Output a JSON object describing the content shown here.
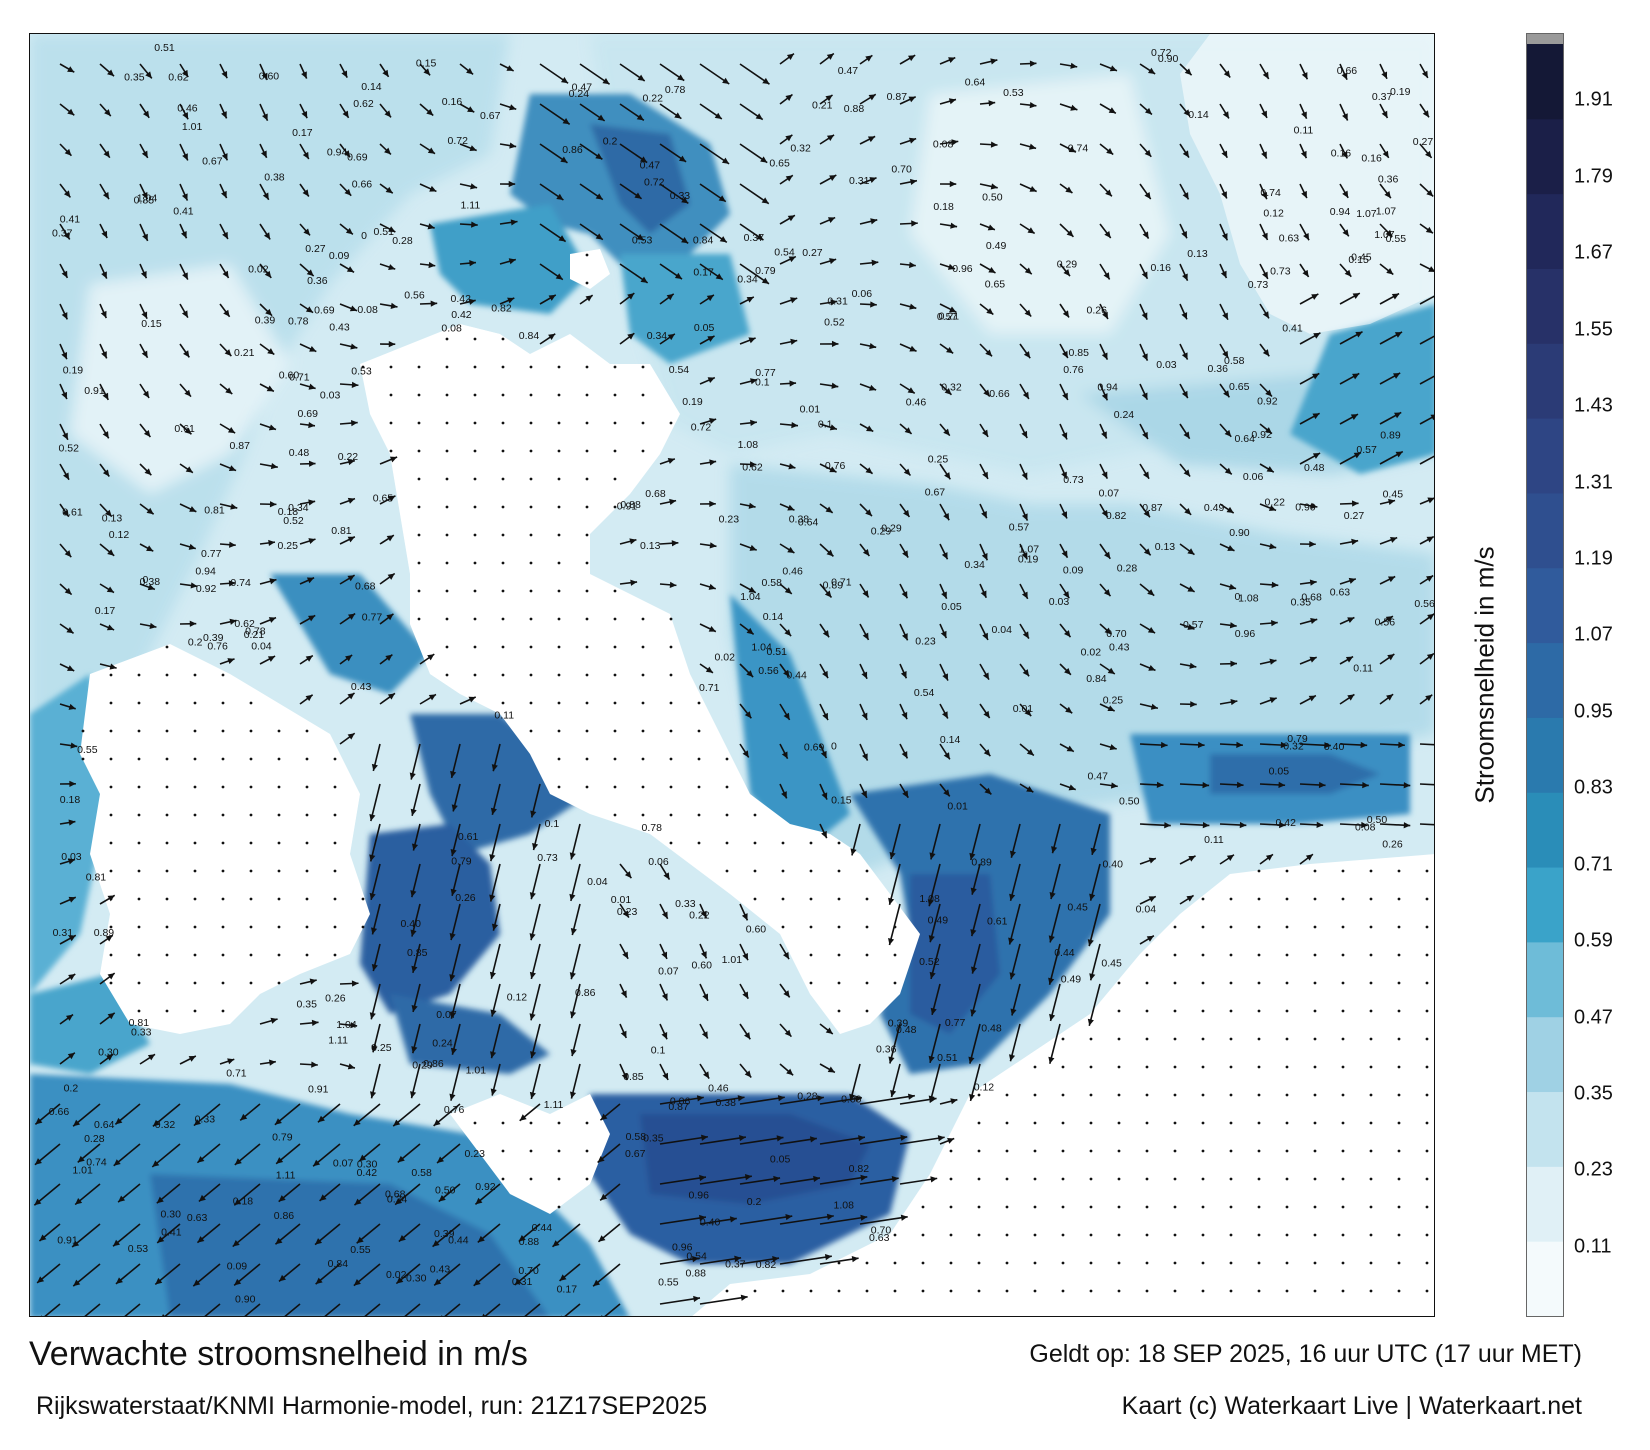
{
  "title": "Verwachte stroomsnelheid in m/s",
  "subtitle": "Rijkswaterstaat/KNMI Harmonie-model, run: 21Z17SEP2025",
  "valid_time": "Geldt op: 18 SEP 2025, 16 uur UTC (17 uur MET)",
  "credit": "Kaart (c) Waterkaart Live | Waterkaart.net",
  "colorbar": {
    "label": "Stroomsnelheid in m/s",
    "ticks": [
      "1.91",
      "1.79",
      "1.67",
      "1.55",
      "1.43",
      "1.31",
      "1.19",
      "1.07",
      "0.95",
      "0.83",
      "0.71",
      "0.59",
      "0.47",
      "0.35",
      "0.23",
      "0.11"
    ],
    "tick_values": [
      1.91,
      1.79,
      1.67,
      1.55,
      1.43,
      1.31,
      1.19,
      1.07,
      0.95,
      0.83,
      0.71,
      0.59,
      0.47,
      0.35,
      0.23,
      0.11
    ],
    "min": 0.0,
    "max": 2.0,
    "colors": [
      "#f4fafc",
      "#e0f0f6",
      "#c3e3ee",
      "#9fd1e4",
      "#6ebcd8",
      "#3aa3c9",
      "#2a8db8",
      "#2a7aae",
      "#2d6aa6",
      "#305b9c",
      "#2f4f8f",
      "#2e4584",
      "#2b3b76",
      "#273168",
      "#21285a",
      "#1b1f48",
      "#141836"
    ]
  },
  "labels": [
    {
      "t": "0.1"
    },
    {
      "t": "0.14"
    },
    {
      "t": "0.08"
    },
    {
      "t": "0.16"
    },
    {
      "t": "0.12"
    },
    {
      "t": "0.2"
    },
    {
      "t": "0.13"
    },
    {
      "t": "0.19"
    },
    {
      "t": "0.11"
    },
    {
      "t": "0.17"
    },
    {
      "t": "0.15"
    },
    {
      "t": "0.09"
    },
    {
      "t": "0.06"
    },
    {
      "t": "0.07"
    },
    {
      "t": "0.05"
    },
    {
      "t": "0.18"
    },
    {
      "t": "0.21"
    },
    {
      "t": "0.25"
    },
    {
      "t": "0.29"
    },
    {
      "t": "0.36"
    },
    {
      "t": "0.43"
    },
    {
      "t": "0.56"
    },
    {
      "t": "0.72"
    },
    {
      "t": "0.79"
    },
    {
      "t": "0.89"
    },
    {
      "t": "0.47"
    },
    {
      "t": "0.33"
    },
    {
      "t": "0.27"
    },
    {
      "t": "0.22"
    },
    {
      "t": "0.02"
    },
    {
      "t": "0.01"
    },
    {
      "t": "0.04"
    },
    {
      "t": "0.03"
    },
    {
      "t": "0"
    },
    {
      "t": "0.24"
    },
    {
      "t": "0.31"
    },
    {
      "t": "0.37"
    },
    {
      "t": "0.52"
    },
    {
      "t": "0.74"
    },
    {
      "t": "0.62"
    },
    {
      "t": "0.88"
    },
    {
      "t": "0.96"
    },
    {
      "t": "0.84"
    },
    {
      "t": "0.81"
    },
    {
      "t": "0.64"
    },
    {
      "t": "0.53"
    },
    {
      "t": "0.45"
    },
    {
      "t": "0.39"
    },
    {
      "t": "0.28"
    },
    {
      "t": "0.32"
    },
    {
      "t": "0.41"
    },
    {
      "t": "0.42"
    },
    {
      "t": "0.44"
    },
    {
      "t": "0.46"
    },
    {
      "t": "0.49"
    },
    {
      "t": "0.54"
    },
    {
      "t": "0.58"
    },
    {
      "t": "0.61"
    },
    {
      "t": "0.67"
    },
    {
      "t": "0.77"
    },
    {
      "t": "0.91"
    },
    {
      "t": "0.92"
    },
    {
      "t": "1.11"
    },
    {
      "t": "1.04"
    },
    {
      "t": "1.07"
    },
    {
      "t": "1.08"
    },
    {
      "t": "1.01"
    },
    {
      "t": "0.94"
    },
    {
      "t": "0.86"
    },
    {
      "t": "0.76"
    },
    {
      "t": "0.70"
    },
    {
      "t": "0.65"
    },
    {
      "t": "0.57"
    },
    {
      "t": "0.51"
    },
    {
      "t": "0.48"
    },
    {
      "t": "0.40"
    },
    {
      "t": "0.35"
    },
    {
      "t": "0.26"
    },
    {
      "t": "0.23"
    },
    {
      "t": "0.30"
    },
    {
      "t": "0.34"
    },
    {
      "t": "0.38"
    },
    {
      "t": "0.50"
    },
    {
      "t": "0.55"
    },
    {
      "t": "0.60"
    },
    {
      "t": "0.63"
    },
    {
      "t": "0.66"
    },
    {
      "t": "0.68"
    },
    {
      "t": "0.69"
    },
    {
      "t": "0.71"
    },
    {
      "t": "0.73"
    },
    {
      "t": "0.78"
    },
    {
      "t": "0.82"
    },
    {
      "t": "0.85"
    },
    {
      "t": "0.87"
    },
    {
      "t": "0.90"
    }
  ]
}
